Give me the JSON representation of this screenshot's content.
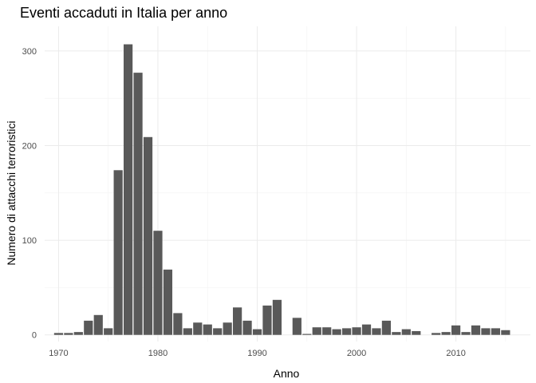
{
  "chart_data": {
    "type": "bar",
    "title": "Eventi accaduti in Italia per anno",
    "xlabel": "Anno",
    "ylabel": "Numero di attacchi terroristici",
    "xlim": [
      1968.6,
      2017.5
    ],
    "ylim": [
      -7,
      326
    ],
    "x_ticks": [
      1970,
      1980,
      1990,
      2000,
      2010
    ],
    "y_ticks": [
      0,
      100,
      200,
      300
    ],
    "grid": true,
    "bar_color": "#595959",
    "x": [
      1970,
      1971,
      1972,
      1973,
      1974,
      1975,
      1976,
      1977,
      1978,
      1979,
      1980,
      1981,
      1982,
      1983,
      1984,
      1985,
      1986,
      1987,
      1988,
      1989,
      1990,
      1991,
      1992,
      1993,
      1994,
      1995,
      1996,
      1997,
      1998,
      1999,
      2000,
      2001,
      2002,
      2003,
      2004,
      2005,
      2006,
      2007,
      2008,
      2009,
      2010,
      2011,
      2012,
      2013,
      2014,
      2015
    ],
    "values": [
      2,
      2,
      3,
      15,
      21,
      7,
      174,
      307,
      277,
      209,
      110,
      69,
      23,
      7,
      13,
      11,
      7,
      13,
      29,
      15,
      6,
      31,
      37,
      0,
      18,
      1,
      8,
      8,
      6,
      7,
      8,
      11,
      7,
      15,
      3,
      6,
      4,
      0,
      2,
      3,
      10,
      3,
      10,
      7,
      7,
      5
    ]
  }
}
